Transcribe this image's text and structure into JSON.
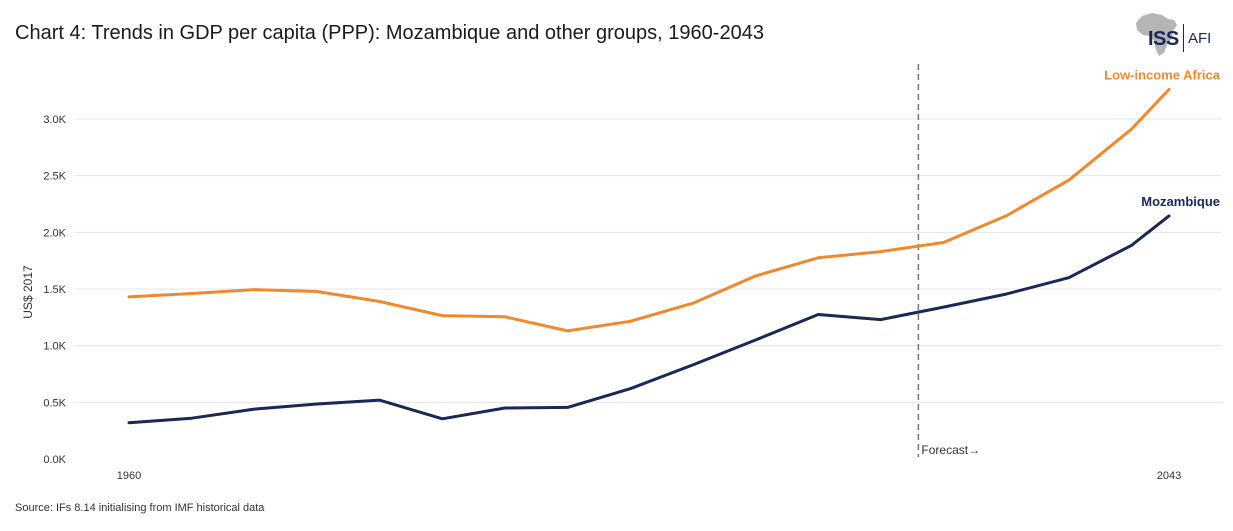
{
  "header": {
    "title": "Chart 4: Trends in GDP per capita (PPP): Mozambique and other groups, 1960-2043"
  },
  "logo": {
    "primary": "ISS",
    "secondary": "AFI"
  },
  "footer": {
    "source": "Source: IFs 8.14 initialising from IMF historical data"
  },
  "chart_data": {
    "type": "line",
    "title": "Chart 4: Trends in GDP per capita (PPP): Mozambique and other groups, 1960-2043",
    "ylabel": "US$ 2017",
    "xlabel": "",
    "xlim": [
      1960,
      2043
    ],
    "ylim": [
      0,
      3300
    ],
    "grid": "horizontal",
    "x_tick_labels": [
      {
        "x": 1960,
        "label": "1960"
      },
      {
        "x": 2043,
        "label": "2043"
      }
    ],
    "y_ticks": [
      {
        "value": 0,
        "label": "0.0K"
      },
      {
        "value": 500,
        "label": "0.5K"
      },
      {
        "value": 1000,
        "label": "1.0K"
      },
      {
        "value": 1500,
        "label": "1.5K"
      },
      {
        "value": 2000,
        "label": "2.0K"
      },
      {
        "value": 2500,
        "label": "2.5K"
      },
      {
        "value": 3000,
        "label": "3.0K"
      }
    ],
    "forecast": {
      "x": 2023,
      "label": "Forecast→"
    },
    "x": [
      1960,
      1965,
      1970,
      1975,
      1980,
      1985,
      1990,
      1995,
      2000,
      2005,
      2010,
      2015,
      2020,
      2025,
      2030,
      2035,
      2040,
      2043
    ],
    "series": [
      {
        "name": "Low-income Africa",
        "color": "#f0882e",
        "values": [
          1430,
          1460,
          1495,
          1478,
          1390,
          1265,
          1255,
          1130,
          1215,
          1375,
          1615,
          1775,
          1830,
          1910,
          2145,
          2460,
          2910,
          3260
        ]
      },
      {
        "name": "Mozambique",
        "color": "#1b2755",
        "values": [
          320,
          360,
          440,
          485,
          520,
          355,
          450,
          455,
          620,
          830,
          1050,
          1275,
          1230,
          1340,
          1455,
          1600,
          1885,
          2145
        ]
      }
    ]
  }
}
